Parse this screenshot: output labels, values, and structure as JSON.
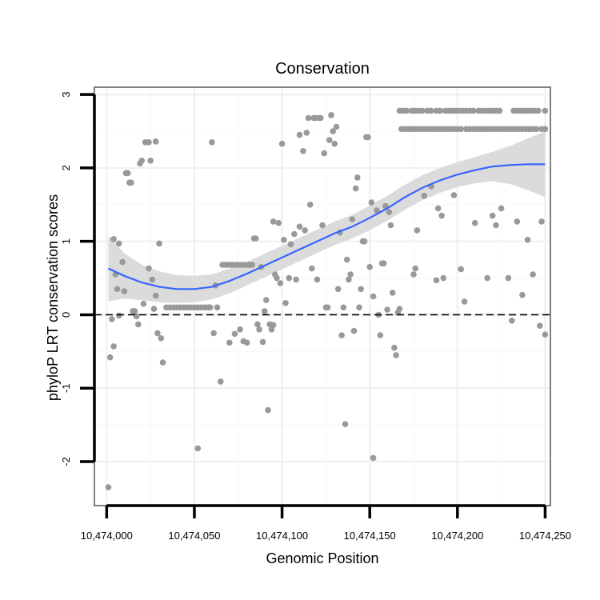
{
  "chart_data": {
    "type": "scatter",
    "title": "Conservation",
    "xlabel": "Genomic Position",
    "ylabel": "phyloP LRT conservation scores",
    "xlim": [
      10473993,
      10474253
    ],
    "ylim": [
      -2.6,
      3.1
    ],
    "x_ticks": [
      {
        "value": 10474000,
        "label": "10,474,000"
      },
      {
        "value": 10474050,
        "label": "10,474,050"
      },
      {
        "value": 10474100,
        "label": "10,474,100"
      },
      {
        "value": 10474150,
        "label": "10,474,150"
      },
      {
        "value": 10474200,
        "label": "10,474,200"
      },
      {
        "value": 10474250,
        "label": "10,474,250"
      }
    ],
    "y_ticks": [
      {
        "value": -2,
        "label": "-2"
      },
      {
        "value": -1,
        "label": "-1"
      },
      {
        "value": 0,
        "label": "0"
      },
      {
        "value": 1,
        "label": "1"
      },
      {
        "value": 2,
        "label": "2"
      },
      {
        "value": 3,
        "label": "3"
      }
    ],
    "reference_line": {
      "y": 0,
      "style": "dashed"
    },
    "colors": {
      "points": "#999999",
      "smooth_line": "#3366ff",
      "confidence_band": "#d9d9d9",
      "panel_border": "#808080",
      "axis": "#000000"
    },
    "points": [
      {
        "x": 10474001,
        "y": -2.35
      },
      {
        "x": 10474002,
        "y": -0.58
      },
      {
        "x": 10474003,
        "y": -0.06
      },
      {
        "x": 10474004,
        "y": -0.43
      },
      {
        "x": 10474005,
        "y": 0.55
      },
      {
        "x": 10474004,
        "y": 1.03
      },
      {
        "x": 10474006,
        "y": 0.35
      },
      {
        "x": 10474007,
        "y": 0.97
      },
      {
        "x": 10474007,
        "y": -0.01
      },
      {
        "x": 10474009,
        "y": 0.72
      },
      {
        "x": 10474010,
        "y": 0.32
      },
      {
        "x": 10474011,
        "y": 1.93
      },
      {
        "x": 10474012,
        "y": 1.93
      },
      {
        "x": 10474013,
        "y": 1.8
      },
      {
        "x": 10474014,
        "y": 1.8
      },
      {
        "x": 10474015,
        "y": 0.05
      },
      {
        "x": 10474016,
        "y": 0.05
      },
      {
        "x": 10474017,
        "y": -0.02
      },
      {
        "x": 10474018,
        "y": -0.13
      },
      {
        "x": 10474019,
        "y": 2.06
      },
      {
        "x": 10474020,
        "y": 2.1
      },
      {
        "x": 10474021,
        "y": 0.15
      },
      {
        "x": 10474022,
        "y": 2.35
      },
      {
        "x": 10474024,
        "y": 2.35
      },
      {
        "x": 10474024,
        "y": 0.63
      },
      {
        "x": 10474025,
        "y": 2.1
      },
      {
        "x": 10474026,
        "y": 0.48
      },
      {
        "x": 10474027,
        "y": 0.08
      },
      {
        "x": 10474028,
        "y": 2.36
      },
      {
        "x": 10474028,
        "y": 0.26
      },
      {
        "x": 10474029,
        "y": -0.25
      },
      {
        "x": 10474030,
        "y": 0.97
      },
      {
        "x": 10474031,
        "y": -0.32
      },
      {
        "x": 10474032,
        "y": -0.65
      },
      {
        "x": 10474034,
        "y": 0.1
      },
      {
        "x": 10474036,
        "y": 0.1
      },
      {
        "x": 10474038,
        "y": 0.1
      },
      {
        "x": 10474040,
        "y": 0.1
      },
      {
        "x": 10474042,
        "y": 0.1
      },
      {
        "x": 10474044,
        "y": 0.1
      },
      {
        "x": 10474046,
        "y": 0.1
      },
      {
        "x": 10474048,
        "y": 0.1
      },
      {
        "x": 10474050,
        "y": 0.1
      },
      {
        "x": 10474052,
        "y": 0.1
      },
      {
        "x": 10474052,
        "y": -1.82
      },
      {
        "x": 10474054,
        "y": 0.1
      },
      {
        "x": 10474056,
        "y": 0.1
      },
      {
        "x": 10474058,
        "y": 0.1
      },
      {
        "x": 10474059,
        "y": 0.1
      },
      {
        "x": 10474060,
        "y": 2.35
      },
      {
        "x": 10474061,
        "y": -0.25
      },
      {
        "x": 10474062,
        "y": 0.4
      },
      {
        "x": 10474063,
        "y": 0.1
      },
      {
        "x": 10474065,
        "y": -0.91
      },
      {
        "x": 10474066,
        "y": 0.68
      },
      {
        "x": 10474067,
        "y": 0.68
      },
      {
        "x": 10474068,
        "y": 0.68
      },
      {
        "x": 10474069,
        "y": 0.68
      },
      {
        "x": 10474070,
        "y": -0.38
      },
      {
        "x": 10474071,
        "y": 0.68
      },
      {
        "x": 10474072,
        "y": 0.68
      },
      {
        "x": 10474073,
        "y": -0.26
      },
      {
        "x": 10474074,
        "y": 0.68
      },
      {
        "x": 10474075,
        "y": 0.68
      },
      {
        "x": 10474076,
        "y": -0.2
      },
      {
        "x": 10474077,
        "y": 0.68
      },
      {
        "x": 10474078,
        "y": -0.36
      },
      {
        "x": 10474079,
        "y": 0.68
      },
      {
        "x": 10474080,
        "y": -0.38
      },
      {
        "x": 10474081,
        "y": 0.68
      },
      {
        "x": 10474082,
        "y": 0.68
      },
      {
        "x": 10474083,
        "y": 0.68
      },
      {
        "x": 10474084,
        "y": 1.04
      },
      {
        "x": 10474085,
        "y": 1.04
      },
      {
        "x": 10474086,
        "y": -0.13
      },
      {
        "x": 10474087,
        "y": -0.2
      },
      {
        "x": 10474088,
        "y": 0.65
      },
      {
        "x": 10474089,
        "y": -0.37
      },
      {
        "x": 10474090,
        "y": 0.05
      },
      {
        "x": 10474091,
        "y": 0.2
      },
      {
        "x": 10474092,
        "y": -1.3
      },
      {
        "x": 10474093,
        "y": -0.13
      },
      {
        "x": 10474094,
        "y": -0.2
      },
      {
        "x": 10474095,
        "y": 1.27
      },
      {
        "x": 10474095,
        "y": -0.14
      },
      {
        "x": 10474096,
        "y": 0.55
      },
      {
        "x": 10474097,
        "y": 0.5
      },
      {
        "x": 10474098,
        "y": 1.25
      },
      {
        "x": 10474099,
        "y": 0.43
      },
      {
        "x": 10474100,
        "y": 2.33
      },
      {
        "x": 10474101,
        "y": 1.02
      },
      {
        "x": 10474102,
        "y": 0.16
      },
      {
        "x": 10474104,
        "y": 0.5
      },
      {
        "x": 10474105,
        "y": 0.96
      },
      {
        "x": 10474107,
        "y": 1.1
      },
      {
        "x": 10474108,
        "y": 0.48
      },
      {
        "x": 10474110,
        "y": 2.45
      },
      {
        "x": 10474110,
        "y": 1.2
      },
      {
        "x": 10474112,
        "y": 2.23
      },
      {
        "x": 10474113,
        "y": 1.15
      },
      {
        "x": 10474114,
        "y": 2.48
      },
      {
        "x": 10474115,
        "y": 2.68
      },
      {
        "x": 10474116,
        "y": 1.5
      },
      {
        "x": 10474117,
        "y": 0.63
      },
      {
        "x": 10474118,
        "y": 2.68
      },
      {
        "x": 10474119,
        "y": 2.68
      },
      {
        "x": 10474120,
        "y": 0.48
      },
      {
        "x": 10474121,
        "y": 2.68
      },
      {
        "x": 10474122,
        "y": 2.68
      },
      {
        "x": 10474123,
        "y": 1.22
      },
      {
        "x": 10474124,
        "y": 2.2
      },
      {
        "x": 10474125,
        "y": 0.1
      },
      {
        "x": 10474126,
        "y": 0.1
      },
      {
        "x": 10474127,
        "y": 2.38
      },
      {
        "x": 10474128,
        "y": 2.72
      },
      {
        "x": 10474129,
        "y": 2.5
      },
      {
        "x": 10474130,
        "y": 2.33
      },
      {
        "x": 10474131,
        "y": 2.56
      },
      {
        "x": 10474132,
        "y": 0.35
      },
      {
        "x": 10474133,
        "y": 1.12
      },
      {
        "x": 10474134,
        "y": -0.28
      },
      {
        "x": 10474135,
        "y": 0.1
      },
      {
        "x": 10474136,
        "y": -1.49
      },
      {
        "x": 10474137,
        "y": 0.75
      },
      {
        "x": 10474138,
        "y": 0.48
      },
      {
        "x": 10474139,
        "y": 0.55
      },
      {
        "x": 10474140,
        "y": 1.3
      },
      {
        "x": 10474141,
        "y": -0.22
      },
      {
        "x": 10474142,
        "y": 1.72
      },
      {
        "x": 10474143,
        "y": 1.87
      },
      {
        "x": 10474144,
        "y": 0.1
      },
      {
        "x": 10474145,
        "y": 0.35
      },
      {
        "x": 10474146,
        "y": 1.0
      },
      {
        "x": 10474147,
        "y": 1.0
      },
      {
        "x": 10474148,
        "y": 2.42
      },
      {
        "x": 10474149,
        "y": 2.42
      },
      {
        "x": 10474150,
        "y": 0.65
      },
      {
        "x": 10474151,
        "y": 1.53
      },
      {
        "x": 10474152,
        "y": 0.25
      },
      {
        "x": 10474152,
        "y": -1.95
      },
      {
        "x": 10474154,
        "y": 1.42
      },
      {
        "x": 10474155,
        "y": 0.0
      },
      {
        "x": 10474156,
        "y": -0.28
      },
      {
        "x": 10474157,
        "y": 0.7
      },
      {
        "x": 10474158,
        "y": 0.7
      },
      {
        "x": 10474159,
        "y": 1.48
      },
      {
        "x": 10474160,
        "y": 0.07
      },
      {
        "x": 10474161,
        "y": 1.4
      },
      {
        "x": 10474162,
        "y": 1.22
      },
      {
        "x": 10474163,
        "y": 0.3
      },
      {
        "x": 10474164,
        "y": -0.45
      },
      {
        "x": 10474165,
        "y": -0.55
      },
      {
        "x": 10474166,
        "y": 0.03
      },
      {
        "x": 10474167,
        "y": 0.08
      },
      {
        "x": 10474168,
        "y": 2.53
      },
      {
        "x": 10474170,
        "y": 2.53
      },
      {
        "x": 10474172,
        "y": 2.53
      },
      {
        "x": 10474174,
        "y": 2.53
      },
      {
        "x": 10474176,
        "y": 2.53
      },
      {
        "x": 10474178,
        "y": 2.53
      },
      {
        "x": 10474180,
        "y": 2.53
      },
      {
        "x": 10474182,
        "y": 2.53
      },
      {
        "x": 10474184,
        "y": 2.53
      },
      {
        "x": 10474186,
        "y": 2.53
      },
      {
        "x": 10474188,
        "y": 2.53
      },
      {
        "x": 10474190,
        "y": 2.53
      },
      {
        "x": 10474192,
        "y": 2.53
      },
      {
        "x": 10474194,
        "y": 2.53
      },
      {
        "x": 10474196,
        "y": 2.53
      },
      {
        "x": 10474198,
        "y": 2.53
      },
      {
        "x": 10474200,
        "y": 2.53
      },
      {
        "x": 10474202,
        "y": 2.53
      },
      {
        "x": 10474205,
        "y": 2.53
      },
      {
        "x": 10474207,
        "y": 2.53
      },
      {
        "x": 10474209,
        "y": 2.53
      },
      {
        "x": 10474211,
        "y": 2.53
      },
      {
        "x": 10474213,
        "y": 2.53
      },
      {
        "x": 10474215,
        "y": 2.53
      },
      {
        "x": 10474217,
        "y": 2.53
      },
      {
        "x": 10474219,
        "y": 2.53
      },
      {
        "x": 10474221,
        "y": 2.53
      },
      {
        "x": 10474223,
        "y": 2.53
      },
      {
        "x": 10474225,
        "y": 2.53
      },
      {
        "x": 10474227,
        "y": 2.53
      },
      {
        "x": 10474229,
        "y": 2.53
      },
      {
        "x": 10474231,
        "y": 2.53
      },
      {
        "x": 10474233,
        "y": 2.53
      },
      {
        "x": 10474235,
        "y": 2.53
      },
      {
        "x": 10474237,
        "y": 2.53
      },
      {
        "x": 10474239,
        "y": 2.53
      },
      {
        "x": 10474241,
        "y": 2.53
      },
      {
        "x": 10474243,
        "y": 2.53
      },
      {
        "x": 10474245,
        "y": 2.53
      },
      {
        "x": 10474248,
        "y": 2.53
      },
      {
        "x": 10474250,
        "y": 2.53
      },
      {
        "x": 10474167,
        "y": 2.78
      },
      {
        "x": 10474169,
        "y": 2.78
      },
      {
        "x": 10474171,
        "y": 2.78
      },
      {
        "x": 10474174,
        "y": 2.78
      },
      {
        "x": 10474176,
        "y": 2.78
      },
      {
        "x": 10474178,
        "y": 2.78
      },
      {
        "x": 10474180,
        "y": 2.78
      },
      {
        "x": 10474183,
        "y": 2.78
      },
      {
        "x": 10474185,
        "y": 2.78
      },
      {
        "x": 10474188,
        "y": 2.78
      },
      {
        "x": 10474190,
        "y": 2.78
      },
      {
        "x": 10474193,
        "y": 2.78
      },
      {
        "x": 10474195,
        "y": 2.78
      },
      {
        "x": 10474197,
        "y": 2.78
      },
      {
        "x": 10474199,
        "y": 2.78
      },
      {
        "x": 10474201,
        "y": 2.78
      },
      {
        "x": 10474203,
        "y": 2.78
      },
      {
        "x": 10474205,
        "y": 2.78
      },
      {
        "x": 10474207,
        "y": 2.78
      },
      {
        "x": 10474209,
        "y": 2.78
      },
      {
        "x": 10474212,
        "y": 2.78
      },
      {
        "x": 10474214,
        "y": 2.78
      },
      {
        "x": 10474216,
        "y": 2.78
      },
      {
        "x": 10474218,
        "y": 2.78
      },
      {
        "x": 10474220,
        "y": 2.78
      },
      {
        "x": 10474222,
        "y": 2.78
      },
      {
        "x": 10474224,
        "y": 2.78
      },
      {
        "x": 10474232,
        "y": 2.78
      },
      {
        "x": 10474234,
        "y": 2.78
      },
      {
        "x": 10474236,
        "y": 2.78
      },
      {
        "x": 10474238,
        "y": 2.78
      },
      {
        "x": 10474240,
        "y": 2.78
      },
      {
        "x": 10474242,
        "y": 2.78
      },
      {
        "x": 10474244,
        "y": 2.78
      },
      {
        "x": 10474246,
        "y": 2.78
      },
      {
        "x": 10474250,
        "y": 2.78
      },
      {
        "x": 10474175,
        "y": 0.55
      },
      {
        "x": 10474176,
        "y": 0.63
      },
      {
        "x": 10474177,
        "y": 1.15
      },
      {
        "x": 10474181,
        "y": 1.62
      },
      {
        "x": 10474185,
        "y": 1.75
      },
      {
        "x": 10474188,
        "y": 0.47
      },
      {
        "x": 10474189,
        "y": 1.45
      },
      {
        "x": 10474191,
        "y": 1.35
      },
      {
        "x": 10474192,
        "y": 0.5
      },
      {
        "x": 10474198,
        "y": 1.63
      },
      {
        "x": 10474202,
        "y": 0.62
      },
      {
        "x": 10474204,
        "y": 0.18
      },
      {
        "x": 10474210,
        "y": 1.25
      },
      {
        "x": 10474217,
        "y": 0.5
      },
      {
        "x": 10474220,
        "y": 1.35
      },
      {
        "x": 10474222,
        "y": 1.22
      },
      {
        "x": 10474225,
        "y": 1.45
      },
      {
        "x": 10474229,
        "y": 0.5
      },
      {
        "x": 10474231,
        "y": -0.08
      },
      {
        "x": 10474234,
        "y": 1.27
      },
      {
        "x": 10474237,
        "y": 0.27
      },
      {
        "x": 10474240,
        "y": 1.02
      },
      {
        "x": 10474243,
        "y": 0.55
      },
      {
        "x": 10474247,
        "y": -0.15
      },
      {
        "x": 10474248,
        "y": 1.27
      },
      {
        "x": 10474250,
        "y": -0.27
      }
    ],
    "smooth_fit": [
      {
        "x": 10474001,
        "y": 0.63,
        "lo": 0.18,
        "hi": 1.08
      },
      {
        "x": 10474010,
        "y": 0.53,
        "lo": 0.22,
        "hi": 0.84
      },
      {
        "x": 10474020,
        "y": 0.44,
        "lo": 0.2,
        "hi": 0.68
      },
      {
        "x": 10474030,
        "y": 0.38,
        "lo": 0.17,
        "hi": 0.59
      },
      {
        "x": 10474040,
        "y": 0.35,
        "lo": 0.16,
        "hi": 0.54
      },
      {
        "x": 10474050,
        "y": 0.35,
        "lo": 0.17,
        "hi": 0.53
      },
      {
        "x": 10474060,
        "y": 0.38,
        "lo": 0.21,
        "hi": 0.55
      },
      {
        "x": 10474070,
        "y": 0.46,
        "lo": 0.29,
        "hi": 0.63
      },
      {
        "x": 10474080,
        "y": 0.56,
        "lo": 0.4,
        "hi": 0.72
      },
      {
        "x": 10474090,
        "y": 0.67,
        "lo": 0.51,
        "hi": 0.83
      },
      {
        "x": 10474100,
        "y": 0.78,
        "lo": 0.62,
        "hi": 0.94
      },
      {
        "x": 10474110,
        "y": 0.89,
        "lo": 0.73,
        "hi": 1.05
      },
      {
        "x": 10474120,
        "y": 1.0,
        "lo": 0.84,
        "hi": 1.16
      },
      {
        "x": 10474130,
        "y": 1.11,
        "lo": 0.95,
        "hi": 1.27
      },
      {
        "x": 10474140,
        "y": 1.2,
        "lo": 1.04,
        "hi": 1.36
      },
      {
        "x": 10474150,
        "y": 1.32,
        "lo": 1.15,
        "hi": 1.49
      },
      {
        "x": 10474160,
        "y": 1.45,
        "lo": 1.28,
        "hi": 1.62
      },
      {
        "x": 10474170,
        "y": 1.6,
        "lo": 1.43,
        "hi": 1.77
      },
      {
        "x": 10474180,
        "y": 1.73,
        "lo": 1.56,
        "hi": 1.9
      },
      {
        "x": 10474190,
        "y": 1.83,
        "lo": 1.66,
        "hi": 2.0
      },
      {
        "x": 10474200,
        "y": 1.91,
        "lo": 1.74,
        "hi": 2.08
      },
      {
        "x": 10474210,
        "y": 1.97,
        "lo": 1.79,
        "hi": 2.15
      },
      {
        "x": 10474220,
        "y": 2.02,
        "lo": 1.82,
        "hi": 2.22
      },
      {
        "x": 10474230,
        "y": 2.04,
        "lo": 1.78,
        "hi": 2.3
      },
      {
        "x": 10474240,
        "y": 2.05,
        "lo": 1.7,
        "hi": 2.4
      },
      {
        "x": 10474250,
        "y": 2.05,
        "lo": 1.6,
        "hi": 2.5
      }
    ]
  }
}
